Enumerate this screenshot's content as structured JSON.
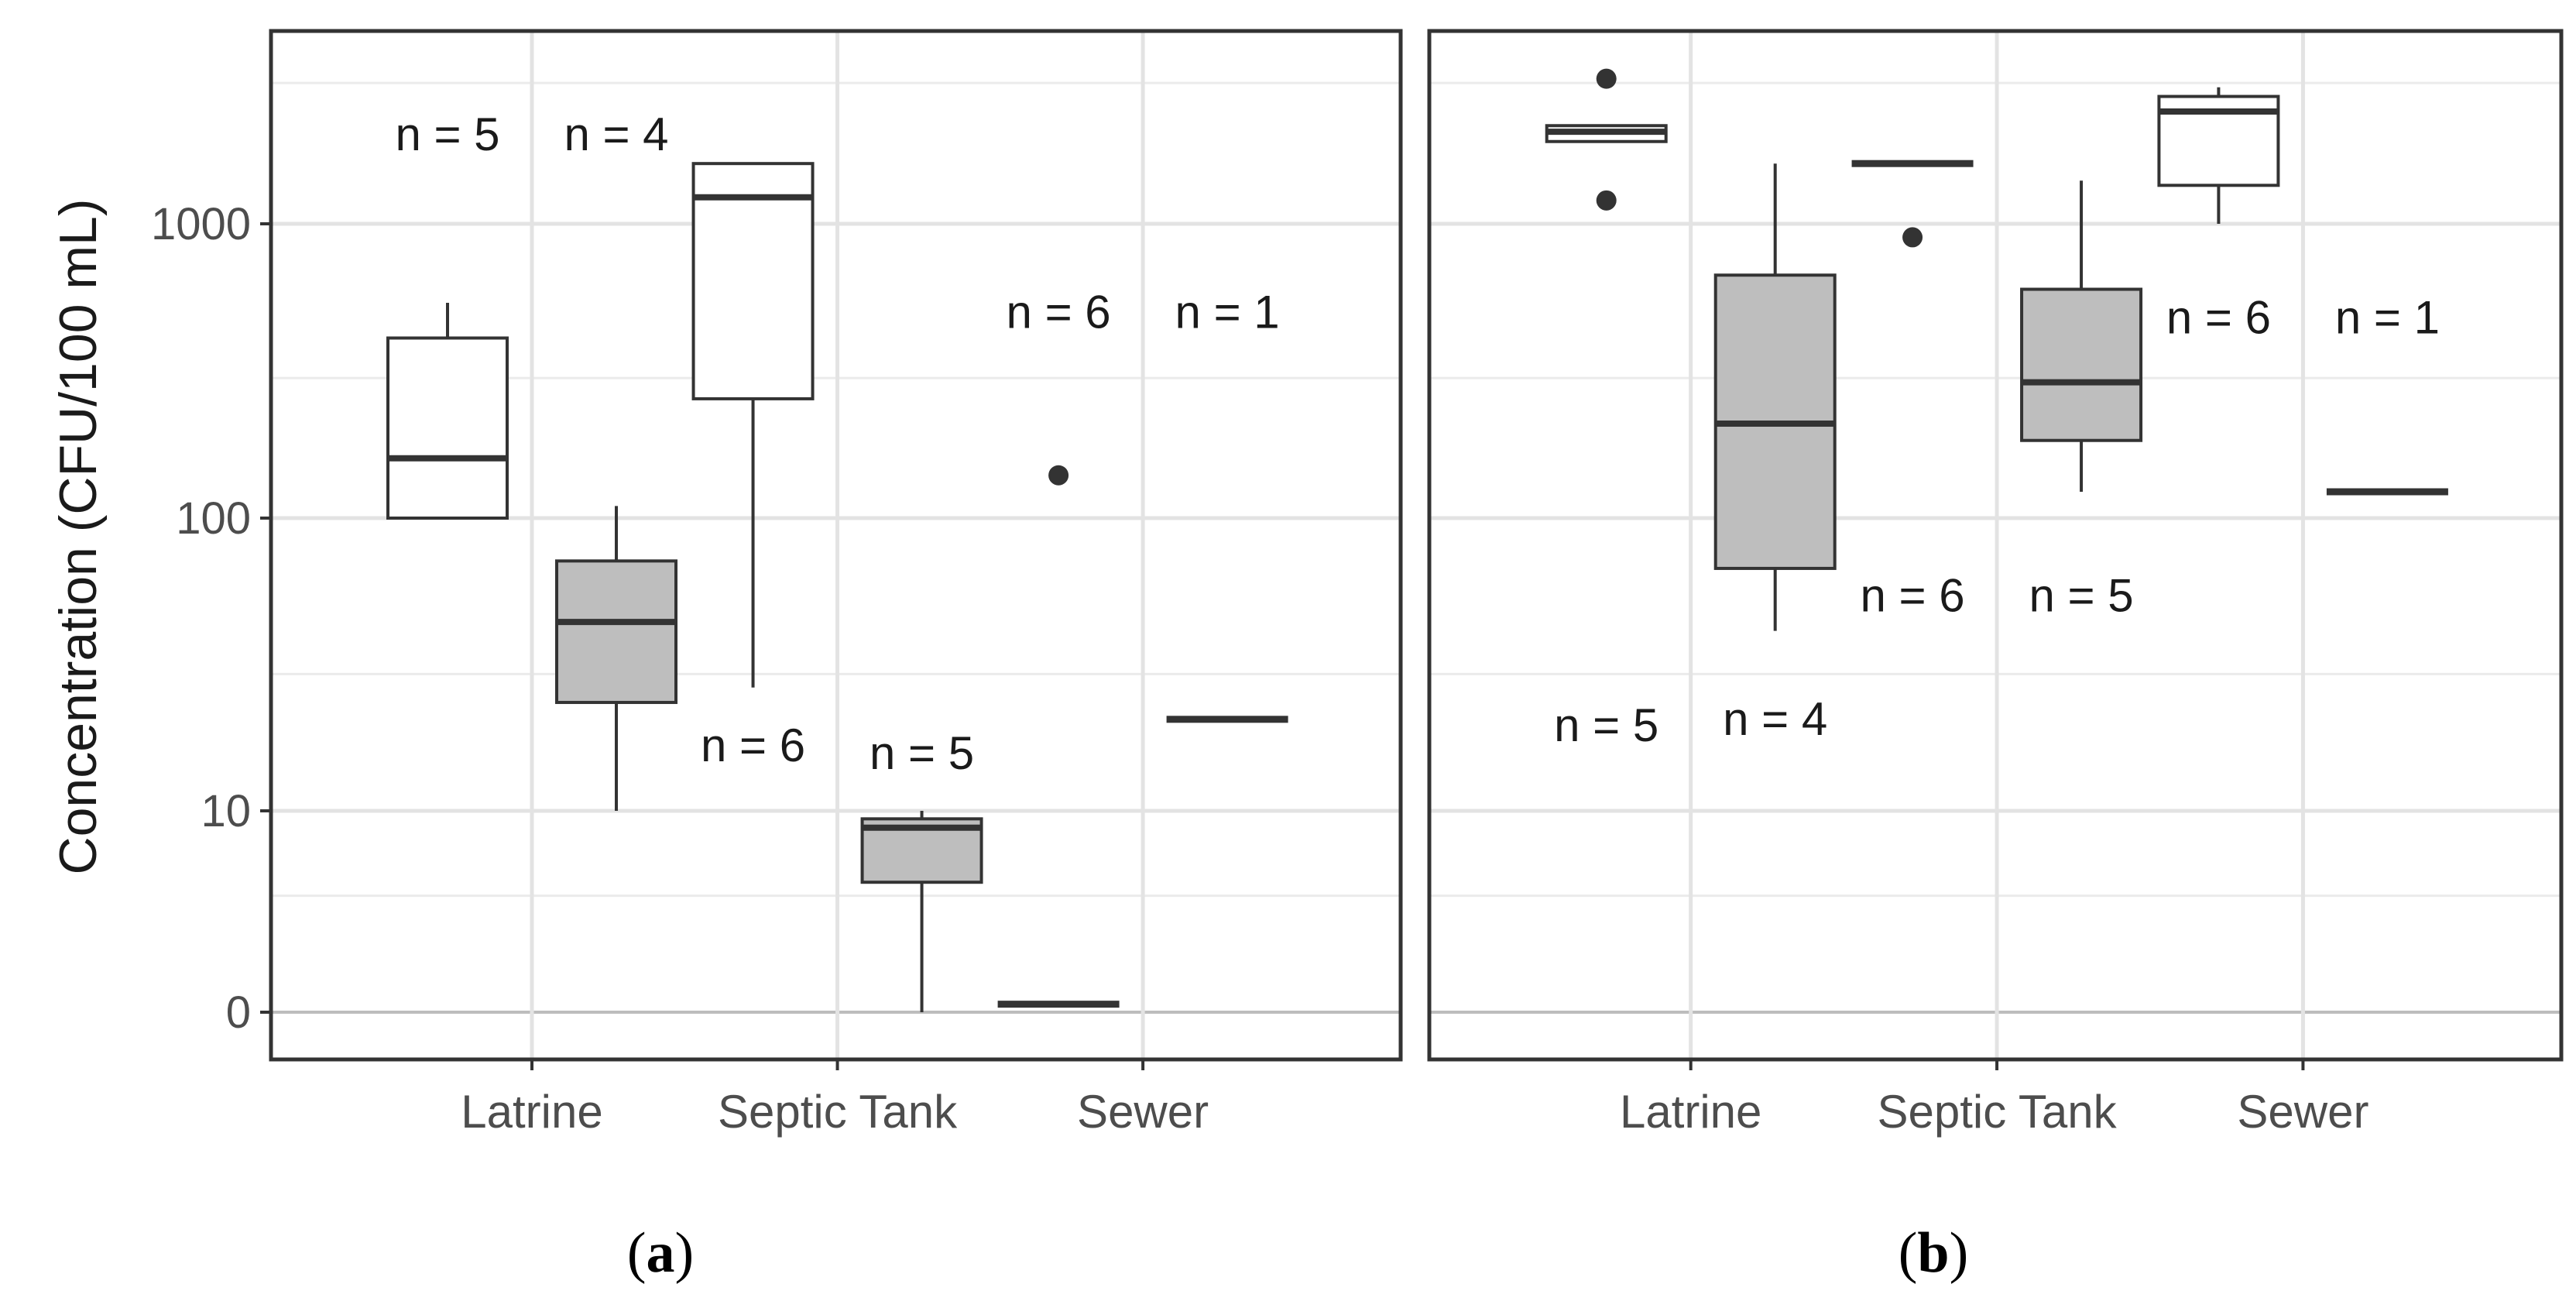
{
  "figure": {
    "y_axis_title": "Concentration (CFU/100 mL)",
    "y_ticks": [
      {
        "value": 0,
        "label": "0"
      },
      {
        "value": 10,
        "label": "10"
      },
      {
        "value": 100,
        "label": "100"
      },
      {
        "value": 1000,
        "label": "1000"
      }
    ]
  },
  "chart_data": [
    {
      "type": "box",
      "panel_label": "a",
      "y_scale": "log1p",
      "ylabel": "Concentration (CFU/100 mL)",
      "categories": [
        "Latrine",
        "Septic Tank",
        "Sewer"
      ],
      "series": [
        {
          "fill": "#ffffff",
          "boxes": [
            {
              "category": "Latrine",
              "min": 100,
              "q1": 100,
              "median": 160,
              "q3": 410,
              "max": 540,
              "outliers": []
            },
            {
              "category": "Septic Tank",
              "min": 27,
              "q1": 255,
              "median": 1230,
              "q3": 1600,
              "max": 1600,
              "outliers": []
            },
            {
              "category": "Sewer",
              "min": 0.1,
              "q1": 0.1,
              "median": 0.1,
              "q3": 0.1,
              "max": 0.1,
              "outliers": [
                140
              ]
            }
          ]
        },
        {
          "fill": "#bebebe",
          "boxes": [
            {
              "category": "Latrine",
              "min": 10,
              "q1": 24,
              "median": 45,
              "q3": 72,
              "max": 110,
              "outliers": []
            },
            {
              "category": "Septic Tank",
              "min": 0,
              "q1": 3.7,
              "median": 8,
              "q3": 9,
              "max": 10,
              "outliers": []
            },
            {
              "category": "Sewer",
              "min": 21,
              "q1": 21,
              "median": 21,
              "q3": 21,
              "max": 21,
              "outliers": []
            }
          ]
        }
      ],
      "annotations": [
        {
          "text": "n = 5",
          "category": "Latrine",
          "series_index": 0,
          "y": 2000
        },
        {
          "text": "n = 4",
          "category": "Latrine",
          "series_index": 1,
          "y": 2000
        },
        {
          "text": "n = 6",
          "category": "Septic Tank",
          "series_index": 0,
          "y": 17
        },
        {
          "text": "n = 5",
          "category": "Septic Tank",
          "series_index": 1,
          "y": 16
        },
        {
          "text": "n = 6",
          "category": "Sewer",
          "series_index": 0,
          "y": 500
        },
        {
          "text": "n = 1",
          "category": "Sewer",
          "series_index": 1,
          "y": 500
        }
      ]
    },
    {
      "type": "box",
      "panel_label": "b",
      "y_scale": "log1p",
      "ylabel": "",
      "categories": [
        "Latrine",
        "Septic Tank",
        "Sewer"
      ],
      "series": [
        {
          "fill": "#ffffff",
          "boxes": [
            {
              "category": "Latrine",
              "min": 1900,
              "q1": 1900,
              "median": 2050,
              "q3": 2150,
              "max": 2150,
              "outliers": [
                3100,
                1200
              ]
            },
            {
              "category": "Septic Tank",
              "min": 1600,
              "q1": 1600,
              "median": 1600,
              "q3": 1600,
              "max": 1600,
              "outliers": [
                900
              ]
            },
            {
              "category": "Sewer",
              "min": 1000,
              "q1": 1350,
              "median": 2400,
              "q3": 2700,
              "max": 2900,
              "outliers": []
            }
          ]
        },
        {
          "fill": "#bebebe",
          "boxes": [
            {
              "category": "Latrine",
              "min": 42,
              "q1": 68,
              "median": 210,
              "q3": 670,
              "max": 1600,
              "outliers": []
            },
            {
              "category": "Septic Tank",
              "min": 123,
              "q1": 184,
              "median": 290,
              "q3": 600,
              "max": 1400,
              "outliers": []
            },
            {
              "category": "Sewer",
              "min": 123,
              "q1": 123,
              "median": 123,
              "q3": 123,
              "max": 123,
              "outliers": []
            }
          ]
        }
      ],
      "annotations": [
        {
          "text": "n = 5",
          "category": "Latrine",
          "series_index": 0,
          "y": 20
        },
        {
          "text": "n = 4",
          "category": "Latrine",
          "series_index": 1,
          "y": 21
        },
        {
          "text": "n = 6",
          "category": "Septic Tank",
          "series_index": 0,
          "y": 55
        },
        {
          "text": "n = 5",
          "category": "Septic Tank",
          "series_index": 1,
          "y": 55
        },
        {
          "text": "n = 6",
          "category": "Sewer",
          "series_index": 0,
          "y": 480
        },
        {
          "text": "n = 1",
          "category": "Sewer",
          "series_index": 1,
          "y": 480
        }
      ]
    }
  ]
}
